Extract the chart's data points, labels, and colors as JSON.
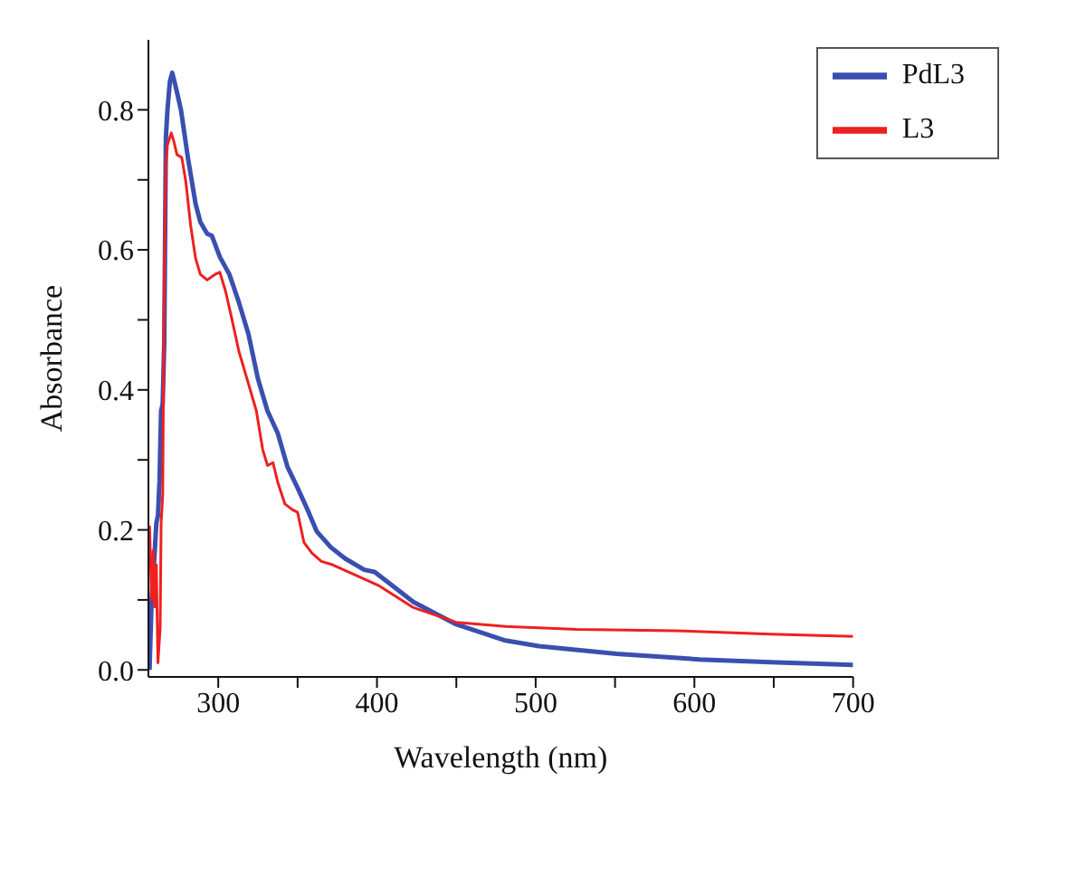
{
  "chart_data": {
    "type": "line",
    "xlabel": "Wavelength (nm)",
    "ylabel": "Absorbance",
    "xlim": [
      256,
      700
    ],
    "ylim": [
      -0.01,
      0.9
    ],
    "xticks": [
      300,
      {
        "value": 350,
        "label": null
      },
      400,
      {
        "value": 450,
        "label": null
      },
      500,
      {
        "value": 550,
        "label": null
      },
      600,
      {
        "value": 650,
        "label": null
      },
      700
    ],
    "yticks": [
      {
        "value": 0,
        "label": "0.0"
      },
      {
        "value": 0.1,
        "label": null
      },
      0.2,
      {
        "value": 0.3,
        "label": null
      },
      0.4,
      {
        "value": 0.5,
        "label": null
      },
      0.6,
      {
        "value": 0.7,
        "label": null
      },
      0.8
    ],
    "grid": false,
    "legend": "top right",
    "marker": "none",
    "line_style": "solid",
    "series": [
      {
        "name": "PdL3",
        "color": "#3a4fb0",
        "x": [
          256.7,
          258,
          260,
          261,
          262,
          263,
          264,
          265,
          266,
          267,
          268,
          269.5,
          271,
          273.5,
          276.5,
          281,
          285.7,
          288.7,
          293,
          296,
          301,
          307,
          313,
          319,
          325,
          331,
          337.5,
          343.6,
          350,
          356,
          362,
          371,
          380,
          392,
          398.5,
          407.6,
          423,
          450,
          481,
          502,
          551,
          603,
          648,
          700
        ],
        "values": [
          0,
          0.1,
          0.17,
          0.21,
          0.22,
          0.27,
          0.37,
          0.38,
          0.47,
          0.76,
          0.8,
          0.84,
          0.853,
          0.83,
          0.8,
          0.73,
          0.666,
          0.64,
          0.623,
          0.62,
          0.59,
          0.565,
          0.525,
          0.48,
          0.416,
          0.37,
          0.338,
          0.29,
          0.26,
          0.23,
          0.198,
          0.175,
          0.159,
          0.143,
          0.14,
          0.124,
          0.097,
          0.065,
          0.042,
          0.034,
          0.023,
          0.015,
          0.011,
          0.007
        ]
      },
      {
        "name": "L3",
        "color": "#ee2020",
        "x": [
          256.7,
          258,
          259,
          260,
          261,
          262,
          263.4,
          264,
          265,
          266,
          267,
          268,
          270.4,
          272,
          274,
          277,
          279.6,
          282.6,
          285.7,
          288.7,
          293,
          298,
          301,
          304.6,
          308.5,
          313,
          319,
          324,
          328,
          331,
          334.5,
          337.5,
          342,
          346.6,
          350,
          354,
          359,
          365,
          371,
          386,
          401.5,
          423,
          450,
          481,
          526,
          588,
          648,
          700
        ],
        "values": [
          0.206,
          0.1,
          0.17,
          0.09,
          0.15,
          0.01,
          0.06,
          0.21,
          0.25,
          0.565,
          0.72,
          0.75,
          0.767,
          0.755,
          0.736,
          0.732,
          0.697,
          0.635,
          0.588,
          0.565,
          0.557,
          0.565,
          0.568,
          0.541,
          0.502,
          0.455,
          0.409,
          0.37,
          0.315,
          0.292,
          0.296,
          0.268,
          0.237,
          0.229,
          0.225,
          0.182,
          0.167,
          0.155,
          0.151,
          0.136,
          0.12,
          0.089,
          0.068,
          0.062,
          0.058,
          0.056,
          0.051,
          0.048
        ]
      }
    ]
  }
}
